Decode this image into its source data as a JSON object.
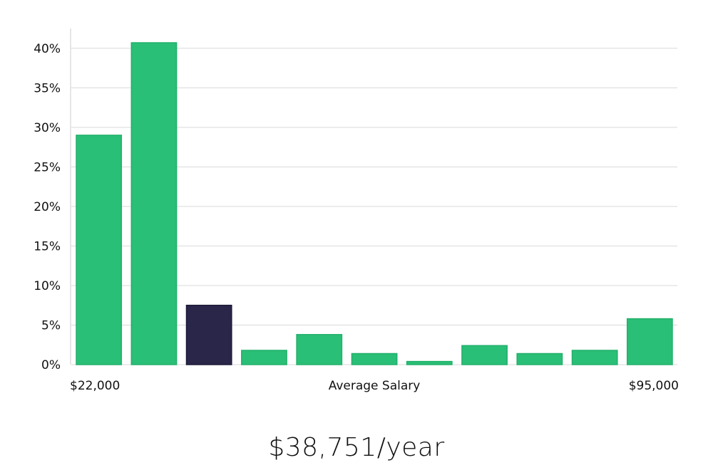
{
  "chart_data": {
    "type": "bar",
    "values": [
      29.0,
      40.7,
      7.5,
      1.8,
      3.8,
      1.4,
      0.4,
      2.4,
      1.4,
      1.8,
      5.8
    ],
    "highlight_index": 2,
    "ylim": [
      0,
      42.5
    ],
    "y_ticks": [
      0,
      5,
      10,
      15,
      20,
      25,
      30,
      35,
      40
    ],
    "y_tick_suffix": "%",
    "x_label_left": "$22,000",
    "x_label_center": "Average Salary",
    "x_label_right": "$95,000",
    "grid": true,
    "colors": {
      "bar": "#2abf76",
      "bar_stroke": "#22b06b",
      "highlight": "#29264a",
      "grid": "#d9d9d9",
      "axis": "#cccccc"
    }
  },
  "summary": {
    "salary": "$38,751/year"
  }
}
